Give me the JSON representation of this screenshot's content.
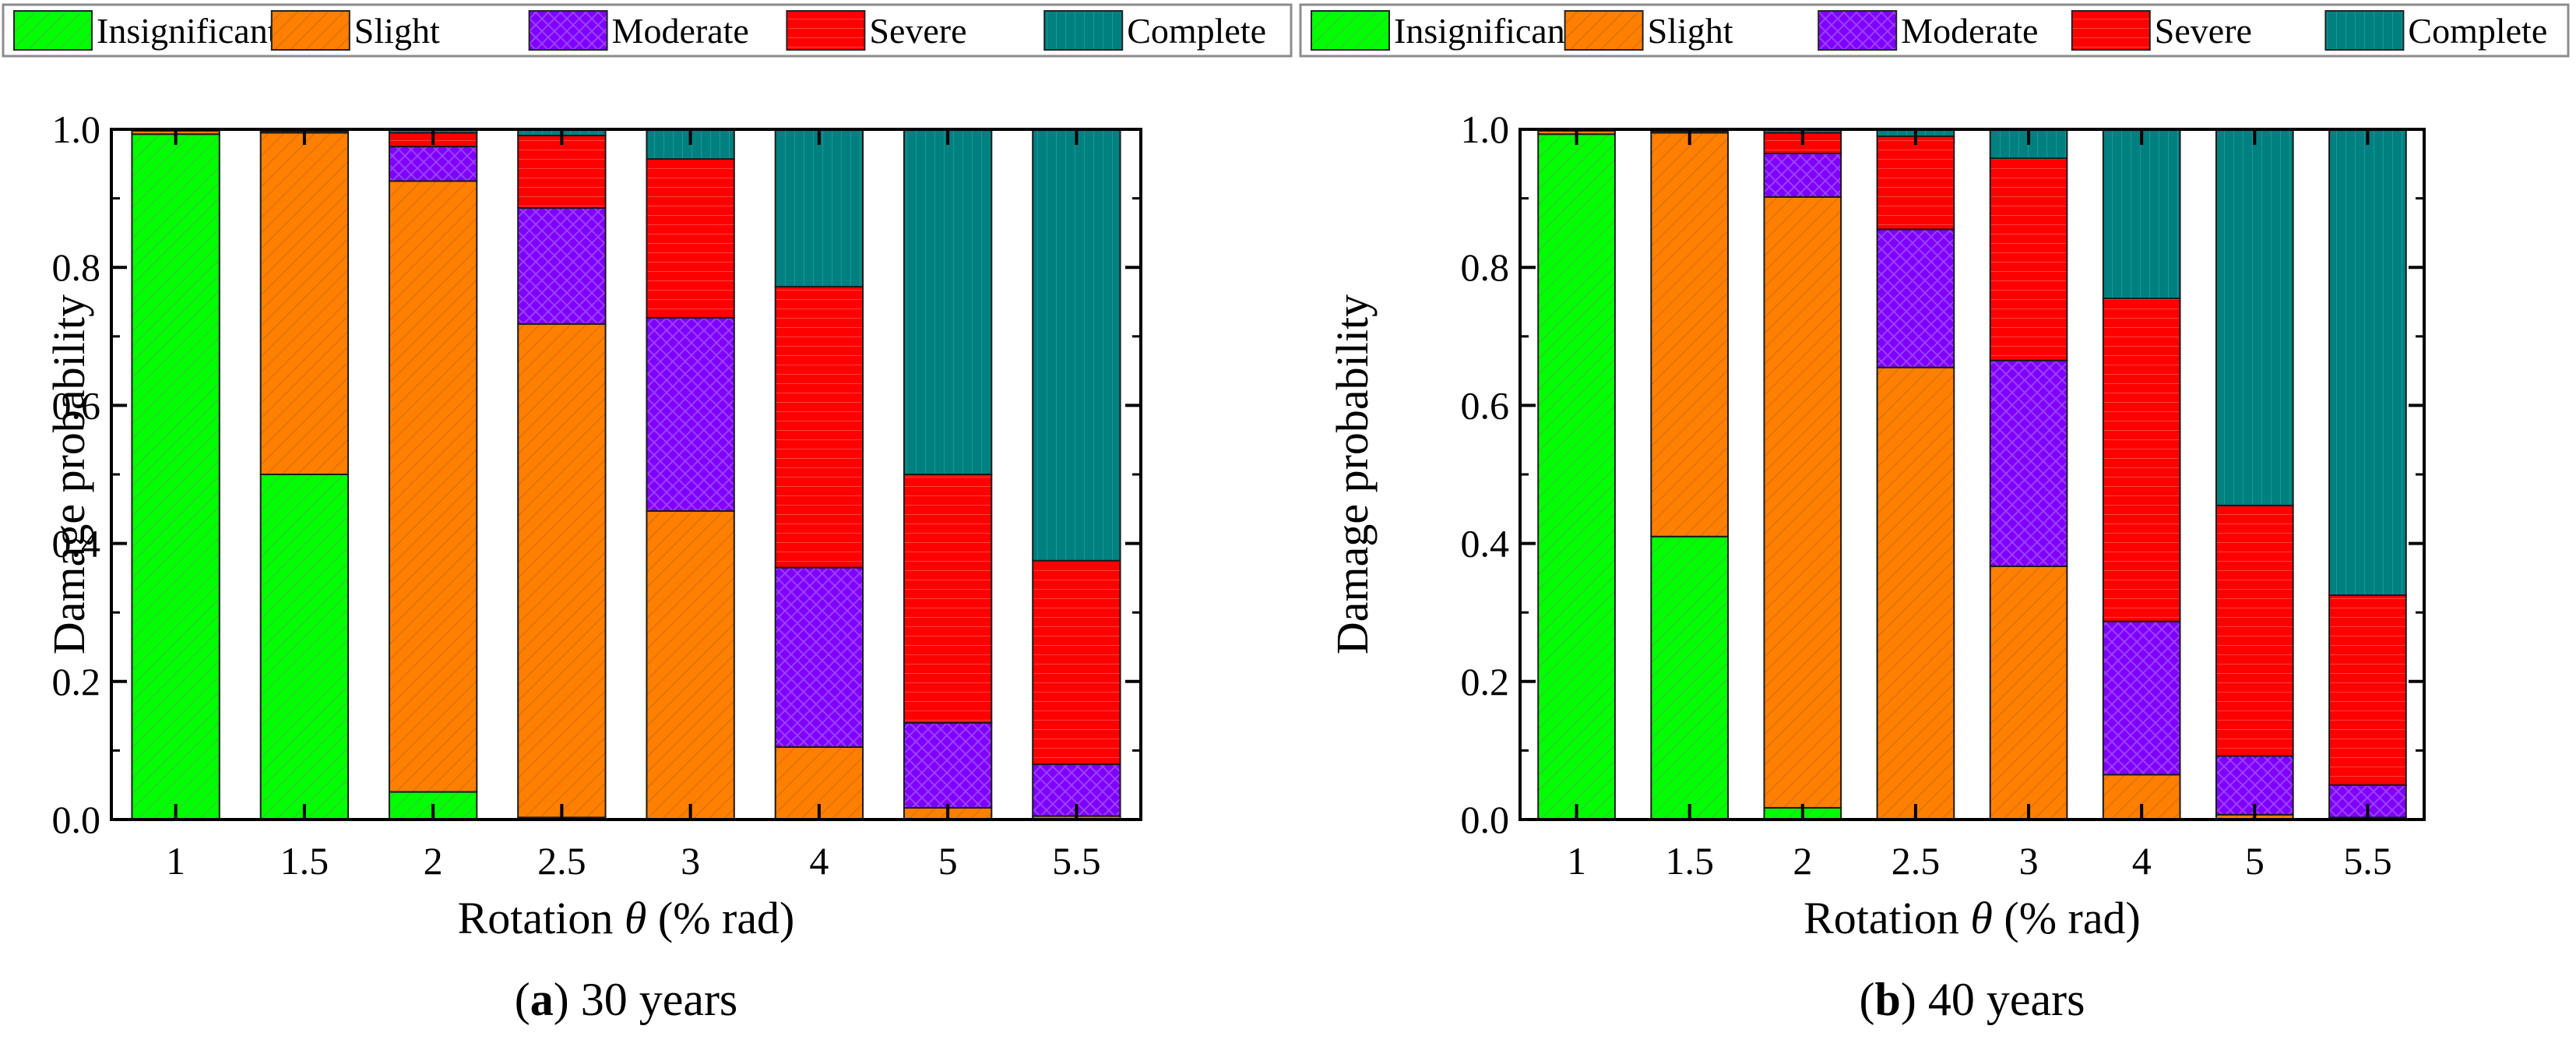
{
  "chart_data": [
    {
      "type": "bar",
      "stacked": true,
      "panel_label": "a",
      "caption": "30 years",
      "xlabel_prefix": "Rotation ",
      "xlabel_symbol": "θ",
      "xlabel_suffix": " (% rad)",
      "ylabel": "Damage probability",
      "ylim": [
        0,
        1
      ],
      "yticks": [
        "0.0",
        "0.2",
        "0.4",
        "0.6",
        "0.8",
        "1.0"
      ],
      "categories": [
        "1",
        "1.5",
        "2",
        "2.5",
        "3",
        "4",
        "5",
        "5.5"
      ],
      "legend": [
        "Insignificant",
        "Slight",
        "Moderate",
        "Severe",
        "Complete"
      ],
      "series": [
        {
          "name": "Insignificant",
          "values": [
            0.993,
            0.5,
            0.04,
            0.003,
            0.0,
            0.0,
            0.0,
            0.0
          ]
        },
        {
          "name": "Slight",
          "values": [
            0.005,
            0.495,
            0.885,
            0.715,
            0.447,
            0.105,
            0.017,
            0.005
          ]
        },
        {
          "name": "Moderate",
          "values": [
            0.0,
            0.002,
            0.05,
            0.168,
            0.28,
            0.26,
            0.123,
            0.075
          ]
        },
        {
          "name": "Severe",
          "values": [
            0.0,
            0.0,
            0.02,
            0.105,
            0.23,
            0.407,
            0.36,
            0.295
          ]
        },
        {
          "name": "Complete",
          "values": [
            0.002,
            0.003,
            0.005,
            0.009,
            0.043,
            0.228,
            0.5,
            0.625
          ]
        }
      ]
    },
    {
      "type": "bar",
      "stacked": true,
      "panel_label": "b",
      "caption": "40 years",
      "xlabel_prefix": "Rotation ",
      "xlabel_symbol": "θ",
      "xlabel_suffix": " (% rad)",
      "ylabel": "Damage probability",
      "ylim": [
        0,
        1
      ],
      "yticks": [
        "0.0",
        "0.2",
        "0.4",
        "0.6",
        "0.8",
        "1.0"
      ],
      "categories": [
        "1",
        "1.5",
        "2",
        "2.5",
        "3",
        "4",
        "5",
        "5.5"
      ],
      "legend": [
        "Insignificant",
        "Slight",
        "Moderate",
        "Severe",
        "Complete"
      ],
      "series": [
        {
          "name": "Insignificant",
          "values": [
            0.993,
            0.41,
            0.017,
            0.0,
            0.0,
            0.0,
            0.0,
            0.0
          ]
        },
        {
          "name": "Slight",
          "values": [
            0.005,
            0.585,
            0.885,
            0.655,
            0.367,
            0.065,
            0.007,
            0.003
          ]
        },
        {
          "name": "Moderate",
          "values": [
            0.0,
            0.002,
            0.063,
            0.2,
            0.298,
            0.222,
            0.085,
            0.047
          ]
        },
        {
          "name": "Severe",
          "values": [
            0.0,
            0.0,
            0.03,
            0.135,
            0.293,
            0.468,
            0.363,
            0.275
          ]
        },
        {
          "name": "Complete",
          "values": [
            0.002,
            0.003,
            0.005,
            0.01,
            0.042,
            0.245,
            0.545,
            0.675
          ]
        }
      ]
    }
  ],
  "colors": {
    "Insignificant": "#00ff00",
    "Slight": "#ff8000",
    "Moderate": "#8000ff",
    "Severe": "#ff0000",
    "Complete": "#008080"
  }
}
